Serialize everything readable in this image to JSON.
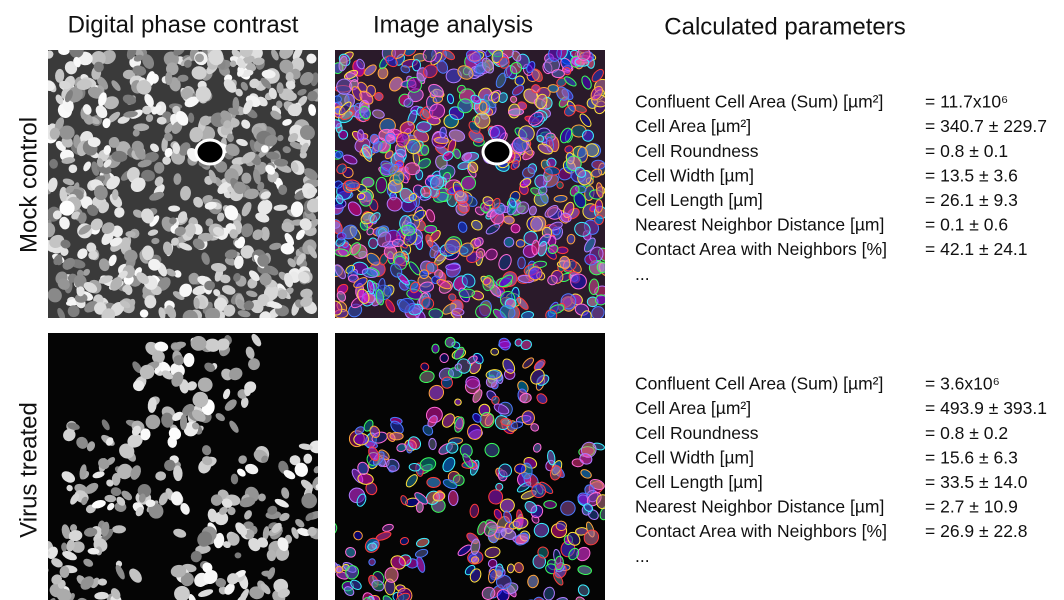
{
  "headers": [
    "Digital phase contrast",
    "Image analysis",
    "Calculated parameters"
  ],
  "rows": [
    {
      "label": "Mock control",
      "parameters": [
        {
          "name": "Confluent Cell Area (Sum) [µm²]",
          "value": "= 11.7x10⁶"
        },
        {
          "name": "Cell Area [µm²]",
          "value": "= 340.7 ± 229.7"
        },
        {
          "name": "Cell Roundness",
          "value": "= 0.8 ± 0.1"
        },
        {
          "name": "Cell Width [µm]",
          "value": "= 13.5 ± 3.6"
        },
        {
          "name": "Cell Length [µm]",
          "value": "= 26.1 ± 9.3"
        },
        {
          "name": "Nearest Neighbor Distance [µm]",
          "value": "= 0.1 ± 0.6"
        },
        {
          "name": "Contact Area with Neighbors [%]",
          "value": "= 42.1 ± 24.1"
        }
      ],
      "more": "..."
    },
    {
      "label": "Virus treated",
      "parameters": [
        {
          "name": "Confluent Cell Area (Sum) [µm²]",
          "value": "= 3.6x10⁶"
        },
        {
          "name": "Cell Area [µm²]",
          "value": "= 493.9 ± 393.1"
        },
        {
          "name": "Cell Roundness",
          "value": "= 0.8 ± 0.2"
        },
        {
          "name": "Cell Width [µm]",
          "value": "= 15.6 ± 6.3"
        },
        {
          "name": "Cell Length [µm]",
          "value": "= 33.5 ± 14.0"
        },
        {
          "name": "Nearest Neighbor Distance [µm]",
          "value": "= 2.7 ± 10.9"
        },
        {
          "name": "Contact Area with Neighbors [%]",
          "value": "= 26.9 ± 22.8"
        }
      ],
      "more": "..."
    }
  ]
}
